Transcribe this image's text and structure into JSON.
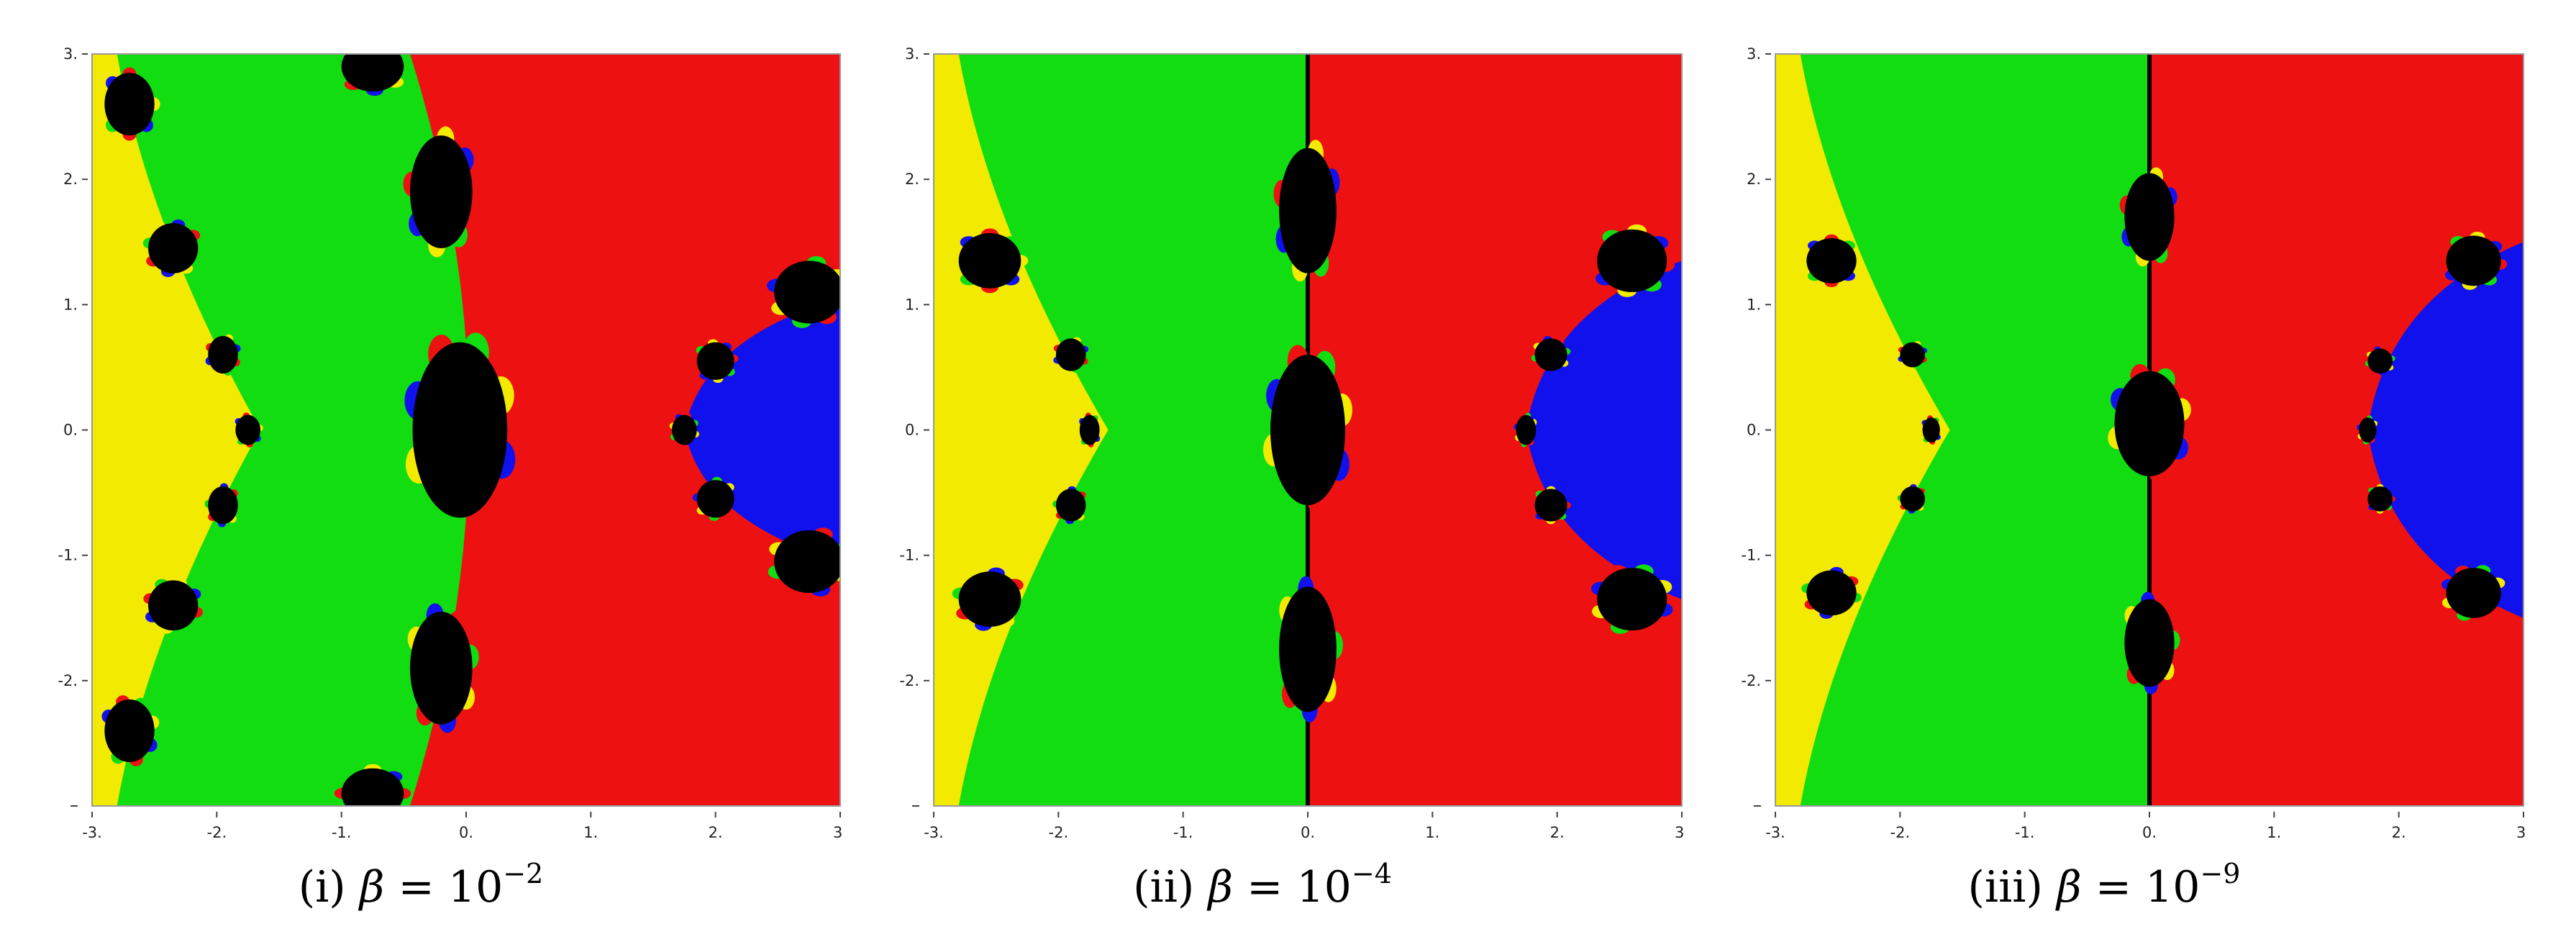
{
  "chart_data": [
    {
      "type": "heatmap",
      "panel": "(i)",
      "caption": {
        "label": "(i)",
        "symbol": "β",
        "equals": "=",
        "base": "10",
        "exponent": "−2"
      },
      "xlim": [
        -3,
        3
      ],
      "ylim": [
        -3,
        3
      ],
      "x_ticks": [
        "-3.",
        "-2.",
        "-1.",
        "0.",
        "1.",
        "2.",
        "3."
      ],
      "y_ticks": [
        "-2.",
        "-1.",
        "0.",
        "1.",
        "2.",
        "3."
      ],
      "y_tick_values": [
        -2,
        -1,
        0,
        1,
        2,
        3
      ],
      "x_tick_values": [
        -3,
        -2,
        -1,
        0,
        1,
        2,
        3
      ],
      "regions": {
        "yellow_boundary_x": -1.65,
        "red_boundary_x": -0.45,
        "red_boundary_bulge": 0.5,
        "blue_vertex_x": 1.75,
        "blue_half_height": 1.05
      },
      "black_blobs": [
        {
          "x": -2.7,
          "y": 2.6,
          "rx": 0.2,
          "ry": 0.25
        },
        {
          "x": -2.35,
          "y": 1.45,
          "rx": 0.2,
          "ry": 0.2
        },
        {
          "x": -1.95,
          "y": 0.6,
          "rx": 0.12,
          "ry": 0.15
        },
        {
          "x": -1.75,
          "y": 0.0,
          "rx": 0.1,
          "ry": 0.12
        },
        {
          "x": -1.95,
          "y": -0.6,
          "rx": 0.12,
          "ry": 0.15
        },
        {
          "x": -2.35,
          "y": -1.4,
          "rx": 0.2,
          "ry": 0.2
        },
        {
          "x": -2.7,
          "y": -2.4,
          "rx": 0.2,
          "ry": 0.25
        },
        {
          "x": -0.75,
          "y": 2.9,
          "rx": 0.25,
          "ry": 0.2
        },
        {
          "x": -0.2,
          "y": 1.9,
          "rx": 0.25,
          "ry": 0.45
        },
        {
          "x": -0.05,
          "y": 0.0,
          "rx": 0.38,
          "ry": 0.7
        },
        {
          "x": -0.2,
          "y": -1.9,
          "rx": 0.25,
          "ry": 0.45
        },
        {
          "x": -0.75,
          "y": -2.9,
          "rx": 0.25,
          "ry": 0.2
        },
        {
          "x": 2.75,
          "y": 1.1,
          "rx": 0.28,
          "ry": 0.25
        },
        {
          "x": 2.75,
          "y": -1.05,
          "rx": 0.28,
          "ry": 0.25
        },
        {
          "x": 2.0,
          "y": 0.55,
          "rx": 0.15,
          "ry": 0.15
        },
        {
          "x": 2.0,
          "y": -0.55,
          "rx": 0.15,
          "ry": 0.15
        },
        {
          "x": 1.75,
          "y": 0.0,
          "rx": 0.1,
          "ry": 0.12
        }
      ]
    },
    {
      "type": "heatmap",
      "panel": "(ii)",
      "caption": {
        "label": "(ii)",
        "symbol": "β",
        "equals": "=",
        "base": "10",
        "exponent": "−4"
      },
      "xlim": [
        -3,
        3
      ],
      "ylim": [
        -3,
        3
      ],
      "x_ticks": [
        "-3.",
        "-2.",
        "-1.",
        "0.",
        "1.",
        "2.",
        "3."
      ],
      "y_ticks": [
        "-2.",
        "-1.",
        "0.",
        "1.",
        "2.",
        "3."
      ],
      "y_tick_values": [
        -2,
        -1,
        0,
        1,
        2,
        3
      ],
      "x_tick_values": [
        -3,
        -2,
        -1,
        0,
        1,
        2,
        3
      ],
      "regions": {
        "yellow_boundary_x": -1.6,
        "red_boundary_x": 0.0,
        "red_boundary_bulge": 0.0,
        "blue_vertex_x": 1.75,
        "blue_half_height": 1.35
      },
      "black_blobs": [
        {
          "x": -2.55,
          "y": 1.35,
          "rx": 0.25,
          "ry": 0.22
        },
        {
          "x": -2.55,
          "y": -1.35,
          "rx": 0.25,
          "ry": 0.22
        },
        {
          "x": -1.9,
          "y": 0.6,
          "rx": 0.12,
          "ry": 0.13
        },
        {
          "x": -1.75,
          "y": 0.0,
          "rx": 0.08,
          "ry": 0.12
        },
        {
          "x": -1.9,
          "y": -0.6,
          "rx": 0.12,
          "ry": 0.13
        },
        {
          "x": 0.0,
          "y": 1.75,
          "rx": 0.23,
          "ry": 0.5
        },
        {
          "x": 0.0,
          "y": 0.0,
          "rx": 0.3,
          "ry": 0.6
        },
        {
          "x": 0.0,
          "y": -1.75,
          "rx": 0.23,
          "ry": 0.5
        },
        {
          "x": 2.6,
          "y": 1.35,
          "rx": 0.28,
          "ry": 0.25
        },
        {
          "x": 2.6,
          "y": -1.35,
          "rx": 0.28,
          "ry": 0.25
        },
        {
          "x": 1.95,
          "y": 0.6,
          "rx": 0.13,
          "ry": 0.13
        },
        {
          "x": 1.95,
          "y": -0.6,
          "rx": 0.13,
          "ry": 0.13
        },
        {
          "x": 1.75,
          "y": 0.0,
          "rx": 0.08,
          "ry": 0.12
        }
      ]
    },
    {
      "type": "heatmap",
      "panel": "(iii)",
      "caption": {
        "label": "(iii)",
        "symbol": "β",
        "equals": "=",
        "base": "10",
        "exponent": "−9"
      },
      "xlim": [
        -3,
        3
      ],
      "ylim": [
        -3,
        3
      ],
      "x_ticks": [
        "-3.",
        "-2.",
        "-1.",
        "0.",
        "1.",
        "2.",
        "3."
      ],
      "y_ticks": [
        "-2.",
        "-1.",
        "0.",
        "1.",
        "2.",
        "3."
      ],
      "y_tick_values": [
        -2,
        -1,
        0,
        1,
        2,
        3
      ],
      "x_tick_values": [
        -3,
        -2,
        -1,
        0,
        1,
        2,
        3
      ],
      "regions": {
        "yellow_boundary_x": -1.6,
        "red_boundary_x": 0.0,
        "red_boundary_bulge": 0.0,
        "blue_vertex_x": 1.75,
        "blue_half_height": 1.5
      },
      "black_blobs": [
        {
          "x": -2.55,
          "y": 1.35,
          "rx": 0.2,
          "ry": 0.18
        },
        {
          "x": -2.55,
          "y": -1.3,
          "rx": 0.2,
          "ry": 0.18
        },
        {
          "x": -1.9,
          "y": 0.6,
          "rx": 0.1,
          "ry": 0.1
        },
        {
          "x": -1.75,
          "y": 0.0,
          "rx": 0.07,
          "ry": 0.1
        },
        {
          "x": -1.9,
          "y": -0.55,
          "rx": 0.1,
          "ry": 0.1
        },
        {
          "x": 0.0,
          "y": 1.7,
          "rx": 0.2,
          "ry": 0.35
        },
        {
          "x": 0.0,
          "y": 0.05,
          "rx": 0.28,
          "ry": 0.42
        },
        {
          "x": 0.0,
          "y": -1.7,
          "rx": 0.2,
          "ry": 0.35
        },
        {
          "x": 2.6,
          "y": 1.35,
          "rx": 0.22,
          "ry": 0.2
        },
        {
          "x": 2.6,
          "y": -1.3,
          "rx": 0.22,
          "ry": 0.2
        },
        {
          "x": 1.85,
          "y": 0.55,
          "rx": 0.1,
          "ry": 0.1
        },
        {
          "x": 1.85,
          "y": -0.55,
          "rx": 0.1,
          "ry": 0.1
        },
        {
          "x": 1.75,
          "y": 0.0,
          "rx": 0.07,
          "ry": 0.1
        }
      ]
    }
  ],
  "colors": {
    "yellow": "#f2ea00",
    "green": "#11dd11",
    "red": "#ee1111",
    "blue": "#1111ee",
    "black": "#000000",
    "frame": "#999999"
  }
}
